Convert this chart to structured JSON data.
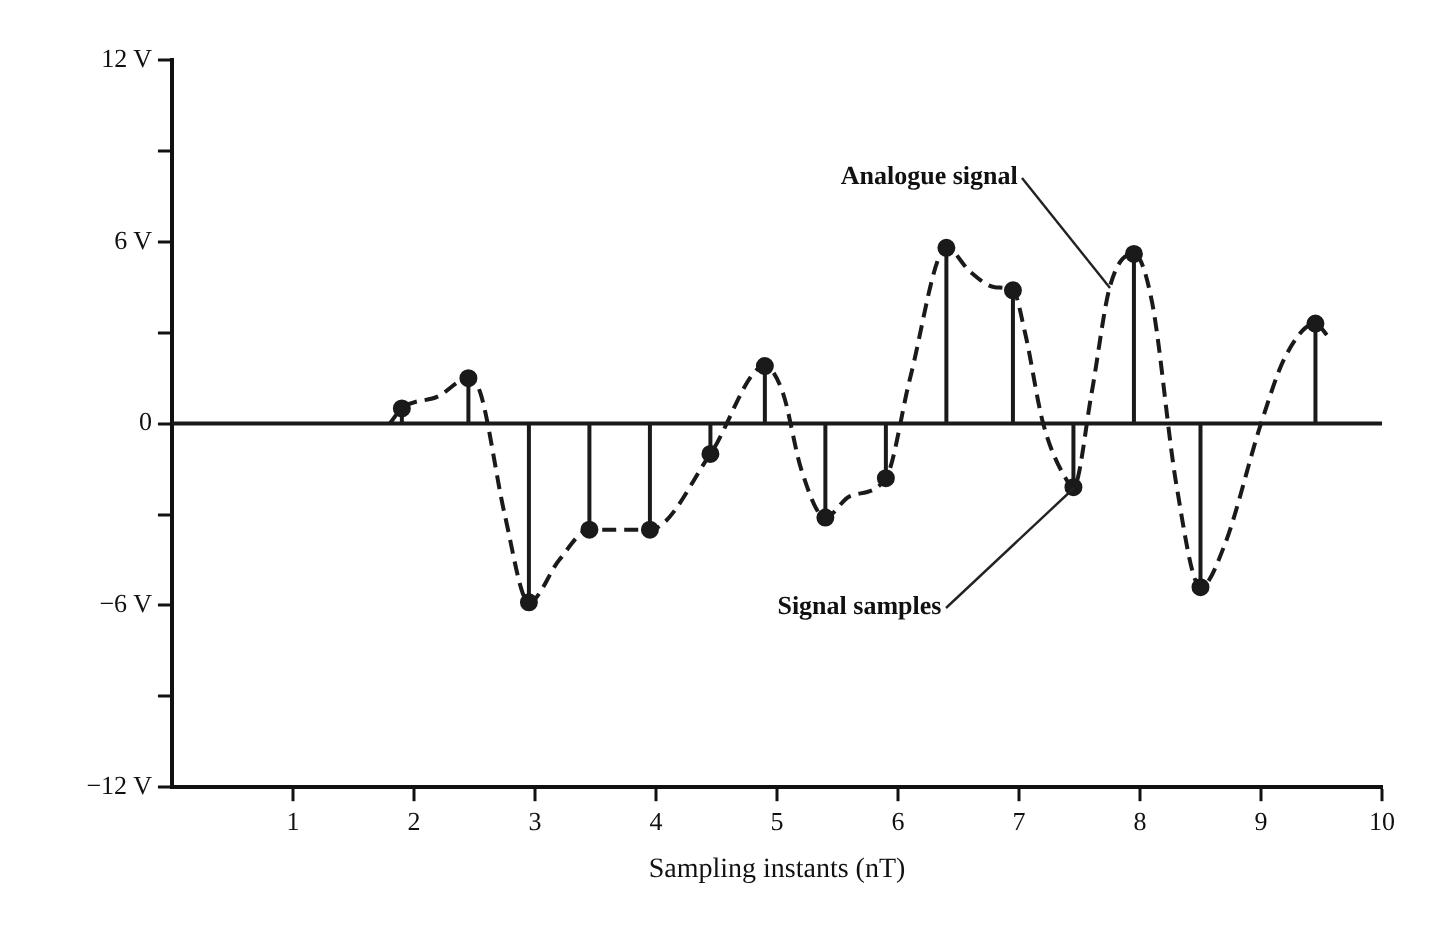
{
  "chart_data": {
    "type": "lollipop",
    "xlabel": "Sampling instants (nT)",
    "series": [
      {
        "type": "line",
        "x": [
          1.8,
          1.9,
          2.2,
          2.45,
          2.55,
          2.75,
          2.95,
          3.2,
          3.45,
          3.95,
          4.45,
          4.9,
          5.05,
          5.2,
          5.4,
          5.6,
          5.9,
          6.1,
          6.4,
          6.6,
          6.8,
          6.95,
          7.05,
          7.2,
          7.4,
          7.45,
          7.6,
          7.75,
          7.95,
          8.1,
          8.3,
          8.5,
          8.7,
          9.0,
          9.2,
          9.45,
          9.55
        ],
        "values": [
          0,
          0.5,
          0.9,
          1.5,
          1.0,
          -3,
          -5.9,
          -4.5,
          -3.5,
          -3.5,
          -1.0,
          1.9,
          1.0,
          -1.5,
          -3.1,
          -2.4,
          -1.8,
          1.5,
          5.8,
          5.0,
          4.5,
          4.4,
          3,
          0,
          -1.9,
          -2.1,
          1,
          4.5,
          5.6,
          4,
          -2,
          -5.4,
          -4,
          0,
          2.2,
          3.3,
          2.9
        ],
        "color": "#1a1a1a",
        "line_style": "dashed",
        "marker": "none"
      },
      {
        "x": [
          1.9,
          2.45,
          2.95,
          3.45,
          3.95,
          4.45,
          4.9,
          5.4,
          5.9,
          6.4,
          6.95,
          7.45,
          7.95,
          8.5,
          9.45
        ],
        "values": [
          0.5,
          1.5,
          -5.9,
          -3.5,
          -3.5,
          -1.0,
          1.9,
          -3.1,
          -1.8,
          5.8,
          4.4,
          -2.1,
          5.6,
          -5.4,
          3.3
        ],
        "color": "#1a1a1a",
        "marker": "circle"
      }
    ],
    "xlim": [
      0,
      10
    ],
    "xticks": [
      1,
      2,
      3,
      4,
      5,
      6,
      7,
      8,
      9,
      10
    ],
    "ylim": [
      -12,
      12
    ],
    "yticks": [
      {
        "value": -12,
        "label": "−12 V"
      },
      {
        "value": -9,
        "label": null
      },
      {
        "value": -6,
        "label": "−6 V"
      },
      {
        "value": -3,
        "label": null
      },
      0,
      {
        "value": 3,
        "label": null
      },
      {
        "value": 6,
        "label": "6 V"
      },
      {
        "value": 9,
        "label": null
      },
      {
        "value": 12,
        "label": "12 V"
      }
    ],
    "grid": false,
    "legend": false,
    "ref_lines": [
      {
        "axis": "y",
        "value": 0,
        "color": "#1a1a1a"
      }
    ],
    "annotations": [
      {
        "text": "Analogue signal",
        "x": 7.75,
        "y": 4.5
      },
      {
        "text": "Signal samples",
        "x": 7.45,
        "y": -2.1
      }
    ]
  }
}
